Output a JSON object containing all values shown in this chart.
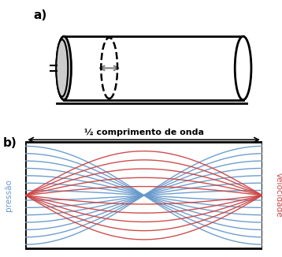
{
  "title_a": "a)",
  "title_b": "b)",
  "label_pressure": "pressão",
  "label_velocity": "velocidade",
  "label_wavelength": "½ comprimento de onda",
  "blue_color": "#6699cc",
  "red_color": "#cc4444",
  "blue_amplitudes": [
    1.0,
    0.85,
    0.7,
    0.55,
    0.4,
    0.25,
    0.1
  ],
  "red_amplitudes": [
    0.9,
    0.72,
    0.54,
    0.36,
    0.18
  ],
  "background_color": "#ffffff"
}
